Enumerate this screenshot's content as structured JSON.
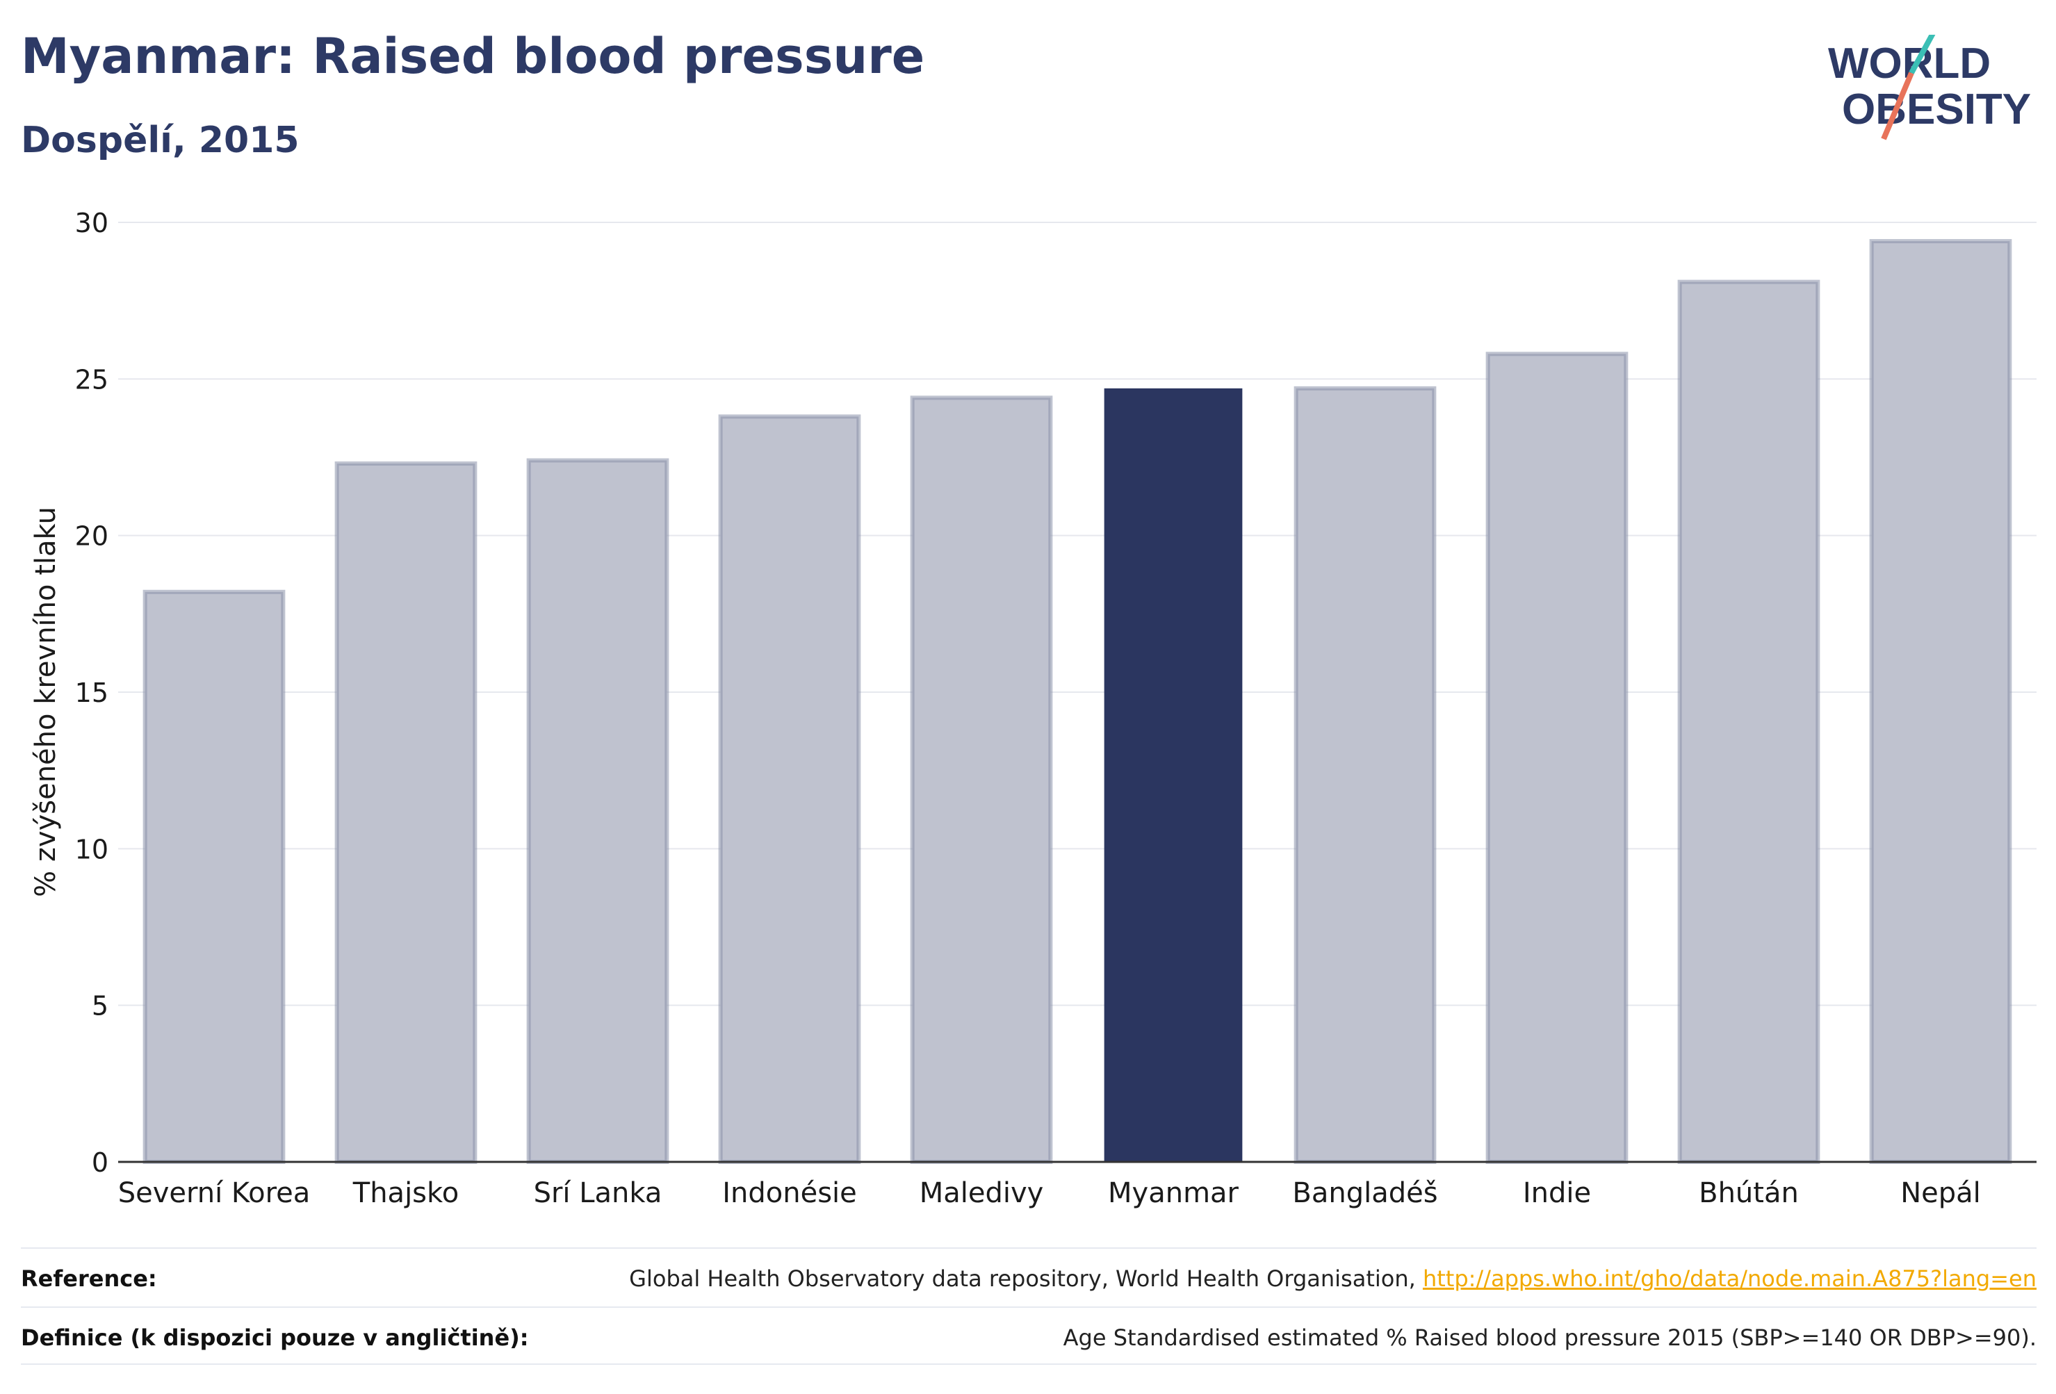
{
  "header": {
    "title": "Myanmar: Raised blood pressure",
    "subtitle": "Dospělí, 2015"
  },
  "logo": {
    "line1": "WORLD",
    "line2": "OBESITY",
    "text_color": "#2d3a66",
    "slash_color_top": "#3bbfb5",
    "slash_color_bottom": "#e8735a"
  },
  "colors": {
    "highlight_bar": "#2b3660",
    "muted_bar_fill": "#bfc2cf",
    "muted_bar_stroke": "#8a91aa",
    "link": "#f2a900"
  },
  "chart_data": {
    "type": "bar",
    "categories": [
      "Severní Korea",
      "Thajsko",
      "Srí Lanka",
      "Indonésie",
      "Maledivy",
      "Myanmar",
      "Bangladéš",
      "Indie",
      "Bhútán",
      "Nepál"
    ],
    "values": [
      18.2,
      22.3,
      22.4,
      23.8,
      24.4,
      24.7,
      24.7,
      25.8,
      28.1,
      29.4
    ],
    "highlight": "Myanmar",
    "title": "Myanmar: Raised blood pressure",
    "subtitle": "Dospělí, 2015",
    "xlabel": "",
    "ylabel": "% zvýšeného krevního tlaku",
    "ylim": [
      0,
      30
    ],
    "yticks": [
      0,
      5,
      10,
      15,
      20,
      25,
      30
    ],
    "grid": true,
    "legend": "none"
  },
  "footer": {
    "reference_label": "Reference:",
    "reference_text": "Global Health Observatory data repository, World Health Organisation, ",
    "reference_link": "http://apps.who.int/gho/data/node.main.A875?lang=en",
    "definition_label": "Definice (k dispozici pouze v angličtině):",
    "definition_text": "Age Standardised estimated % Raised blood pressure 2015 (SBP>=140 OR DBP>=90)."
  }
}
